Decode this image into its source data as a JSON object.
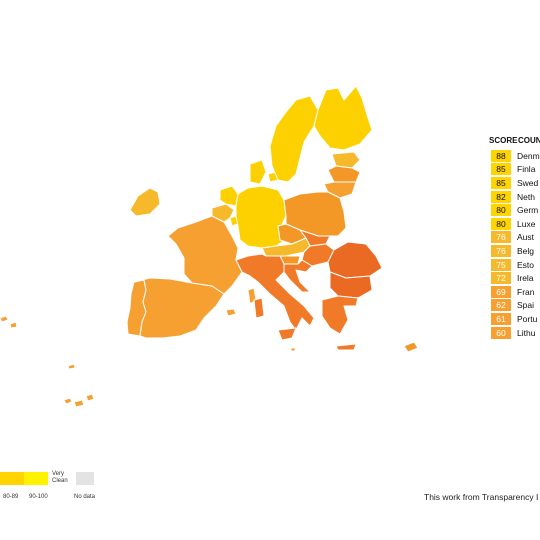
{
  "score_table": {
    "headers": {
      "score": "SCORE",
      "country": "COUNT"
    },
    "rows": [
      {
        "score": "88",
        "country": "Denm",
        "color": "#ffd400"
      },
      {
        "score": "85",
        "country": "Finla",
        "color": "#ffd400"
      },
      {
        "score": "85",
        "country": "Swed",
        "color": "#ffd400"
      },
      {
        "score": "82",
        "country": "Neth",
        "color": "#ffd400"
      },
      {
        "score": "80",
        "country": "Germ",
        "color": "#ffd400"
      },
      {
        "score": "80",
        "country": "Luxe",
        "color": "#ffd400"
      },
      {
        "score": "76",
        "country": "Aust",
        "color": "#f7b92c"
      },
      {
        "score": "76",
        "country": "Belg",
        "color": "#f7b92c"
      },
      {
        "score": "75",
        "country": "Esto",
        "color": "#f7b92c"
      },
      {
        "score": "72",
        "country": "Irela",
        "color": "#f7b92c"
      },
      {
        "score": "69",
        "country": "Fran",
        "color": "#f5a030"
      },
      {
        "score": "62",
        "country": "Spai",
        "color": "#f5a030"
      },
      {
        "score": "61",
        "country": "Portu",
        "color": "#f5a030"
      },
      {
        "score": "60",
        "country": "Lithu",
        "color": "#f5a030"
      }
    ]
  },
  "legend": {
    "clean_label_line1": "Very",
    "clean_label_line2": "Clean",
    "range_80": "80-89",
    "range_90": "90-100",
    "no_data": "No data",
    "colors": {
      "range_80": "#ffd400",
      "range_90": "#fff200",
      "no_data": "#e3e3e3"
    }
  },
  "credit": "This work from Transparency I",
  "map_colors": {
    "score_80_plus": "#fdd000",
    "score_70s": "#f7b92c",
    "score_60s": "#f5a030",
    "score_50s": "#f39826",
    "score_40s": "#f07a28",
    "score_under_40": "#ea6a24"
  },
  "countries": [
    {
      "name": "Sweden",
      "band": "score_80_plus"
    },
    {
      "name": "Finland",
      "band": "score_80_plus"
    },
    {
      "name": "Denmark",
      "band": "score_80_plus"
    },
    {
      "name": "Germany",
      "band": "score_80_plus"
    },
    {
      "name": "Netherlands",
      "band": "score_80_plus"
    },
    {
      "name": "Luxembourg",
      "band": "score_80_plus"
    },
    {
      "name": "Estonia",
      "band": "score_70s"
    },
    {
      "name": "Latvia",
      "band": "score_50s"
    },
    {
      "name": "Lithuania",
      "band": "score_60s"
    },
    {
      "name": "Ireland",
      "band": "score_70s"
    },
    {
      "name": "Belgium",
      "band": "score_70s"
    },
    {
      "name": "Austria",
      "band": "score_70s"
    },
    {
      "name": "France",
      "band": "score_60s"
    },
    {
      "name": "Spain",
      "band": "score_60s"
    },
    {
      "name": "Portugal",
      "band": "score_60s"
    },
    {
      "name": "Poland",
      "band": "score_50s"
    },
    {
      "name": "Czechia",
      "band": "score_50s"
    },
    {
      "name": "Slovakia",
      "band": "score_40s"
    },
    {
      "name": "Slovenia",
      "band": "score_50s"
    },
    {
      "name": "Hungary",
      "band": "score_40s"
    },
    {
      "name": "Croatia",
      "band": "score_40s"
    },
    {
      "name": "Italy",
      "band": "score_40s"
    },
    {
      "name": "Romania",
      "band": "score_under_40"
    },
    {
      "name": "Bulgaria",
      "band": "score_under_40"
    },
    {
      "name": "Greece",
      "band": "score_40s"
    },
    {
      "name": "Cyprus",
      "band": "score_50s"
    },
    {
      "name": "Malta",
      "band": "score_50s"
    },
    {
      "name": "Azores",
      "band": "score_60s"
    },
    {
      "name": "Madeira",
      "band": "score_60s"
    },
    {
      "name": "Canary Islands",
      "band": "score_60s"
    }
  ]
}
